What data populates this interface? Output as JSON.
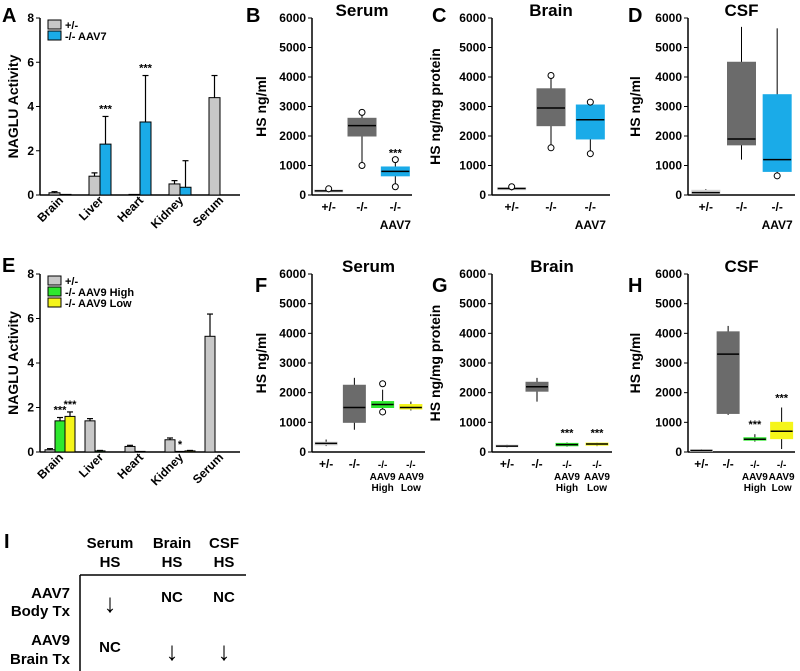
{
  "panel_labels": [
    "A",
    "B",
    "C",
    "D",
    "E",
    "F",
    "G",
    "H",
    "I"
  ],
  "colors": {
    "het": "#c8c8c8",
    "aav7": "#1aabe8",
    "box_ko": "#6b6b6b",
    "aav9_high": "#2ee82e",
    "aav9_low": "#f5f51a",
    "box_het": "#d4d4d4",
    "outline": "#000000"
  },
  "chart_data": [
    {
      "id": "A",
      "type": "bar",
      "ylabel": "NAGLU Activity",
      "ylim": [
        0,
        8
      ],
      "yticks": [
        "0",
        "2",
        "4",
        "6",
        "8"
      ],
      "categories": [
        "Brain",
        "Liver",
        "Heart",
        "Kidney",
        "Serum"
      ],
      "legend": [
        "+/-",
        "-/- AAV7"
      ],
      "series": [
        {
          "name": "+/-",
          "color": "#c8c8c8",
          "values": [
            0.1,
            0.85,
            0.0,
            0.5,
            4.4
          ],
          "err": [
            0.05,
            0.15,
            0.0,
            0.15,
            1.0
          ]
        },
        {
          "name": "-/- AAV7",
          "color": "#1aabe8",
          "values": [
            0.0,
            2.3,
            3.3,
            0.35,
            null
          ],
          "err": [
            0,
            1.25,
            2.1,
            1.2,
            0
          ]
        }
      ],
      "annotations": [
        {
          "cat": 1,
          "series": 1,
          "text": "***"
        },
        {
          "cat": 2,
          "series": 1,
          "text": "***"
        }
      ]
    },
    {
      "id": "B",
      "type": "box",
      "title": "Serum",
      "ylabel": "HS ng/ml",
      "ylim": [
        0,
        6000
      ],
      "yticks": [
        "0",
        "1000",
        "2000",
        "3000",
        "4000",
        "5000",
        "6000"
      ],
      "groups": [
        {
          "label": "+/-",
          "min": 80,
          "q1": 100,
          "median": 140,
          "q3": 170,
          "max": 200,
          "outliers": [
            210
          ],
          "color": "#d4d4d4"
        },
        {
          "label": "-/-",
          "min": 950,
          "q1": 2000,
          "median": 2350,
          "q3": 2600,
          "max": 2700,
          "outliers": [
            2800,
            1000
          ],
          "color": "#6b6b6b"
        },
        {
          "label": "-/-",
          "min": 300,
          "q1": 650,
          "median": 800,
          "q3": 950,
          "max": 1100,
          "outliers": [
            1200,
            280
          ],
          "color": "#1aabe8",
          "sig": "***"
        }
      ],
      "group_caption": "AAV7"
    },
    {
      "id": "C",
      "type": "box",
      "title": "Brain",
      "ylabel": "HS ng/mg protein",
      "ylim": [
        0,
        6000
      ],
      "yticks": [
        "0",
        "1000",
        "2000",
        "3000",
        "4000",
        "5000",
        "6000"
      ],
      "groups": [
        {
          "label": "+/-",
          "min": 150,
          "q1": 180,
          "median": 220,
          "q3": 250,
          "max": 280,
          "outliers": [
            280
          ],
          "color": "#d4d4d4"
        },
        {
          "label": "-/-",
          "min": 1600,
          "q1": 2350,
          "median": 2950,
          "q3": 3600,
          "max": 4000,
          "outliers": [
            4050,
            1600
          ],
          "color": "#6b6b6b"
        },
        {
          "label": "-/-",
          "min": 1400,
          "q1": 1900,
          "median": 2550,
          "q3": 3050,
          "max": 3150,
          "outliers": [
            3150,
            1400
          ],
          "color": "#1aabe8"
        }
      ],
      "group_caption": "AAV7"
    },
    {
      "id": "D",
      "type": "box",
      "title": "CSF",
      "ylabel": "HS ng/ml",
      "ylim": [
        0,
        6000
      ],
      "yticks": [
        "0",
        "1000",
        "2000",
        "3000",
        "4000",
        "5000",
        "6000"
      ],
      "groups": [
        {
          "label": "+/-",
          "min": 30,
          "q1": 40,
          "median": 80,
          "q3": 160,
          "max": 200,
          "outliers": [],
          "color": "#d4d4d4"
        },
        {
          "label": "-/-",
          "min": 1200,
          "q1": 1700,
          "median": 1900,
          "q3": 4500,
          "max": 5700,
          "outliers": [],
          "color": "#6b6b6b"
        },
        {
          "label": "-/-",
          "min": 700,
          "q1": 800,
          "median": 1200,
          "q3": 3400,
          "max": 5650,
          "outliers": [
            650
          ],
          "color": "#1aabe8"
        }
      ],
      "group_caption": "AAV7"
    },
    {
      "id": "E",
      "type": "bar",
      "ylabel": "NAGLU Activity",
      "ylim": [
        0,
        8
      ],
      "yticks": [
        "0",
        "2",
        "4",
        "6",
        "8"
      ],
      "categories": [
        "Brain",
        "Liver",
        "Heart",
        "Kidney",
        "Serum"
      ],
      "legend": [
        "+/-",
        "-/- AAV9 High",
        "-/- AAV9 Low"
      ],
      "series": [
        {
          "name": "+/-",
          "color": "#c8c8c8",
          "values": [
            0.1,
            1.4,
            0.25,
            0.55,
            5.2
          ],
          "err": [
            0.05,
            0.1,
            0.05,
            0.08,
            1.0
          ]
        },
        {
          "name": "-/- AAV9 High",
          "color": "#2ee82e",
          "values": [
            1.4,
            0.05,
            0.0,
            0.0,
            null
          ],
          "err": [
            0.15,
            0.02,
            0,
            0,
            0
          ]
        },
        {
          "name": "-/- AAV9 Low",
          "color": "#f5f51a",
          "values": [
            1.6,
            null,
            null,
            0.05,
            null
          ],
          "err": [
            0.2,
            0,
            0,
            0.02,
            0
          ]
        }
      ],
      "annotations": [
        {
          "cat": 0,
          "series": 1,
          "text": "***"
        },
        {
          "cat": 0,
          "series": 2,
          "text": "***"
        },
        {
          "cat": 3,
          "series": 1,
          "text": "*"
        }
      ]
    },
    {
      "id": "F",
      "type": "box",
      "title": "Serum",
      "ylabel": "HS ng/ml",
      "ylim": [
        0,
        6000
      ],
      "yticks": [
        "0",
        "1000",
        "2000",
        "3000",
        "4000",
        "5000",
        "6000"
      ],
      "groups": [
        {
          "label": "+/-",
          "min": 200,
          "q1": 240,
          "median": 290,
          "q3": 330,
          "max": 420,
          "outliers": [],
          "color": "#d4d4d4"
        },
        {
          "label": "-/-",
          "min": 750,
          "q1": 1000,
          "median": 1500,
          "q3": 2250,
          "max": 2500,
          "outliers": [],
          "color": "#6b6b6b"
        },
        {
          "label": "-/-",
          "sub": [
            "AAV9",
            "High"
          ],
          "min": 1400,
          "q1": 1500,
          "median": 1600,
          "q3": 1700,
          "max": 2100,
          "outliers": [
            2300,
            1350
          ],
          "color": "#2ee82e"
        },
        {
          "label": "-/-",
          "sub": [
            "AAV9",
            "Low"
          ],
          "min": 1400,
          "q1": 1450,
          "median": 1500,
          "q3": 1600,
          "max": 1700,
          "outliers": [],
          "color": "#f5f51a"
        }
      ]
    },
    {
      "id": "G",
      "type": "box",
      "title": "Brain",
      "ylabel": "HS ng/mg protein",
      "ylim": [
        0,
        6000
      ],
      "yticks": [
        "0",
        "1000",
        "2000",
        "3000",
        "4000",
        "5000",
        "6000"
      ],
      "groups": [
        {
          "label": "+/-",
          "min": 150,
          "q1": 180,
          "median": 200,
          "q3": 230,
          "max": 250,
          "outliers": [],
          "color": "#d4d4d4"
        },
        {
          "label": "-/-",
          "min": 1700,
          "q1": 2050,
          "median": 2200,
          "q3": 2350,
          "max": 2500,
          "outliers": [],
          "color": "#6b6b6b"
        },
        {
          "label": "-/-",
          "sub": [
            "AAV9",
            "High"
          ],
          "min": 180,
          "q1": 210,
          "median": 250,
          "q3": 290,
          "max": 320,
          "outliers": [],
          "color": "#2ee82e",
          "sig": "***"
        },
        {
          "label": "-/-",
          "sub": [
            "AAV9",
            "Low"
          ],
          "min": 200,
          "q1": 230,
          "median": 270,
          "q3": 300,
          "max": 320,
          "outliers": [],
          "color": "#f5f51a",
          "sig": "***"
        }
      ]
    },
    {
      "id": "H",
      "type": "box",
      "title": "CSF",
      "ylabel": "HS ng/ml",
      "ylim": [
        0,
        6000
      ],
      "yticks": [
        "0",
        "1000",
        "2000",
        "3000",
        "4000",
        "5000",
        "6000"
      ],
      "groups": [
        {
          "label": "+/-",
          "min": 20,
          "q1": 30,
          "median": 50,
          "q3": 70,
          "max": 90,
          "outliers": [],
          "color": "#d4d4d4"
        },
        {
          "label": "-/-",
          "min": 1250,
          "q1": 1300,
          "median": 3300,
          "q3": 4050,
          "max": 4250,
          "outliers": [],
          "color": "#6b6b6b"
        },
        {
          "label": "-/-",
          "sub": [
            "AAV9",
            "High"
          ],
          "min": 350,
          "q1": 400,
          "median": 430,
          "q3": 480,
          "max": 600,
          "outliers": [],
          "color": "#2ee82e",
          "sig": "***"
        },
        {
          "label": "-/-",
          "sub": [
            "AAV9",
            "Low"
          ],
          "min": 100,
          "q1": 450,
          "median": 700,
          "q3": 1000,
          "max": 1500,
          "outliers": [],
          "color": "#f5f51a",
          "sig": "***"
        }
      ]
    }
  ],
  "summary_table": {
    "headers": [
      [
        "Serum",
        "HS"
      ],
      [
        "Brain",
        "HS"
      ],
      [
        "CSF",
        "HS"
      ]
    ],
    "rows": [
      {
        "label": [
          "AAV7",
          "Body Tx"
        ],
        "cells": [
          "↓",
          "NC",
          "NC"
        ]
      },
      {
        "label": [
          "AAV9",
          "Brain Tx"
        ],
        "cells": [
          "NC",
          "↓",
          "↓"
        ]
      }
    ]
  }
}
